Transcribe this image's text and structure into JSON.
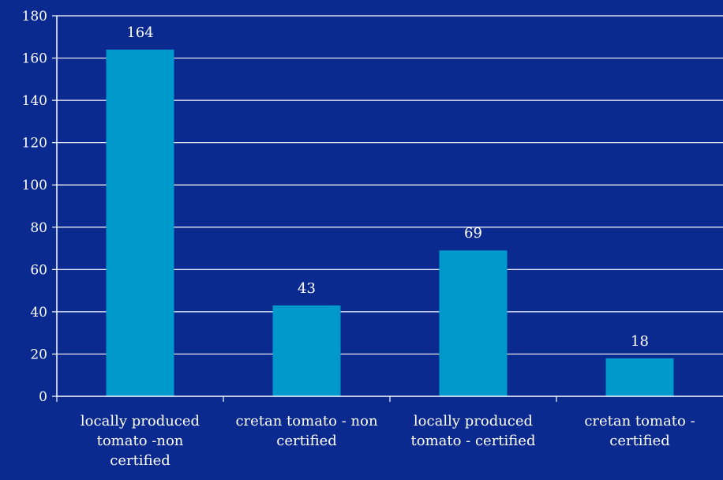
{
  "colors": {
    "background": "#0b2a8f",
    "bar": "#0099cc",
    "gridline": "#ffffff",
    "text": "#ffffff"
  },
  "chart_data": {
    "type": "bar",
    "title": "",
    "xlabel": "",
    "ylabel": "",
    "ylim": [
      0,
      180
    ],
    "y_ticks": [
      0,
      20,
      40,
      60,
      80,
      100,
      120,
      140,
      160,
      180
    ],
    "grid": true,
    "legend": "none",
    "categories": [
      [
        "locally produced",
        "tomato -non",
        "certified"
      ],
      [
        "cretan tomato - non",
        "certified"
      ],
      [
        "locally produced",
        "tomato - certified"
      ],
      [
        "cretan tomato -",
        "certified"
      ]
    ],
    "values": [
      164,
      43,
      69,
      18
    ],
    "data_labels": [
      "164",
      "43",
      "69",
      "18"
    ]
  }
}
